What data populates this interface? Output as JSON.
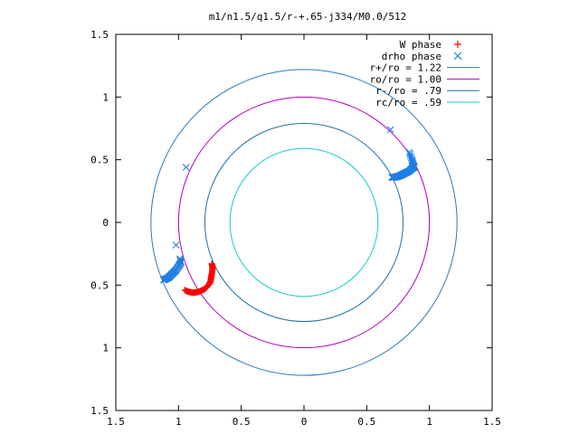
{
  "chart_data": {
    "type": "scatter",
    "title": "m1/n1.5/q1.5/r-+.65-j334/M0.0/512",
    "xlabel": "",
    "ylabel": "",
    "xlim": [
      -1.5,
      1.5
    ],
    "ylim": [
      -1.5,
      1.5
    ],
    "x_tick_labels": [
      "1.5",
      "1",
      "0.5",
      "0",
      "0.5",
      "1",
      "1.5"
    ],
    "y_tick_labels": [
      "1.5",
      "1",
      "0.5",
      "0",
      "0.5",
      "1",
      "1.5"
    ],
    "grid": false,
    "legend_position": "top-right",
    "circles": [
      {
        "name": "r+/ro = 1.22",
        "radius": 1.22,
        "color": "#2b7bbf"
      },
      {
        "name": "ro/ro = 1.00",
        "radius": 1.0,
        "color": "#b000b8"
      },
      {
        "name": "r-/ro = .79",
        "radius": 0.79,
        "color": "#1f6fb0"
      },
      {
        "name": "rc/ro = .59",
        "radius": 0.59,
        "color": "#19c8d0"
      }
    ],
    "series": [
      {
        "name": "W phase",
        "marker": "+",
        "color": "#ff0000",
        "points": [
          [
            -0.95,
            -0.54
          ],
          [
            -0.93,
            -0.55
          ],
          [
            -0.91,
            -0.555
          ],
          [
            -0.89,
            -0.56
          ],
          [
            -0.87,
            -0.56
          ],
          [
            -0.85,
            -0.555
          ],
          [
            -0.83,
            -0.55
          ],
          [
            -0.81,
            -0.54
          ],
          [
            -0.79,
            -0.53
          ],
          [
            -0.77,
            -0.51
          ],
          [
            -0.755,
            -0.49
          ],
          [
            -0.745,
            -0.47
          ],
          [
            -0.74,
            -0.44
          ],
          [
            -0.735,
            -0.41
          ],
          [
            -0.73,
            -0.38
          ],
          [
            -0.73,
            -0.35
          ],
          [
            -0.735,
            -0.33
          ]
        ]
      },
      {
        "name": "drho phase",
        "marker": "x",
        "color": "#1e7fe6",
        "points": [
          [
            -1.12,
            -0.46
          ],
          [
            -1.1,
            -0.45
          ],
          [
            -1.08,
            -0.44
          ],
          [
            -1.06,
            -0.42
          ],
          [
            -1.04,
            -0.4
          ],
          [
            -1.02,
            -0.38
          ],
          [
            -1.0,
            -0.35
          ],
          [
            -0.98,
            -0.32
          ],
          [
            -0.99,
            -0.29
          ],
          [
            -1.02,
            -0.18
          ],
          [
            -0.94,
            0.44
          ],
          [
            0.69,
            0.74
          ],
          [
            0.84,
            0.56
          ],
          [
            0.86,
            0.5
          ],
          [
            0.87,
            0.46
          ],
          [
            0.88,
            0.44
          ],
          [
            0.86,
            0.43
          ],
          [
            0.84,
            0.41
          ],
          [
            0.82,
            0.4
          ],
          [
            0.8,
            0.39
          ],
          [
            0.78,
            0.38
          ],
          [
            0.76,
            0.37
          ],
          [
            0.74,
            0.365
          ],
          [
            0.72,
            0.36
          ],
          [
            0.7,
            0.36
          ]
        ]
      }
    ]
  }
}
